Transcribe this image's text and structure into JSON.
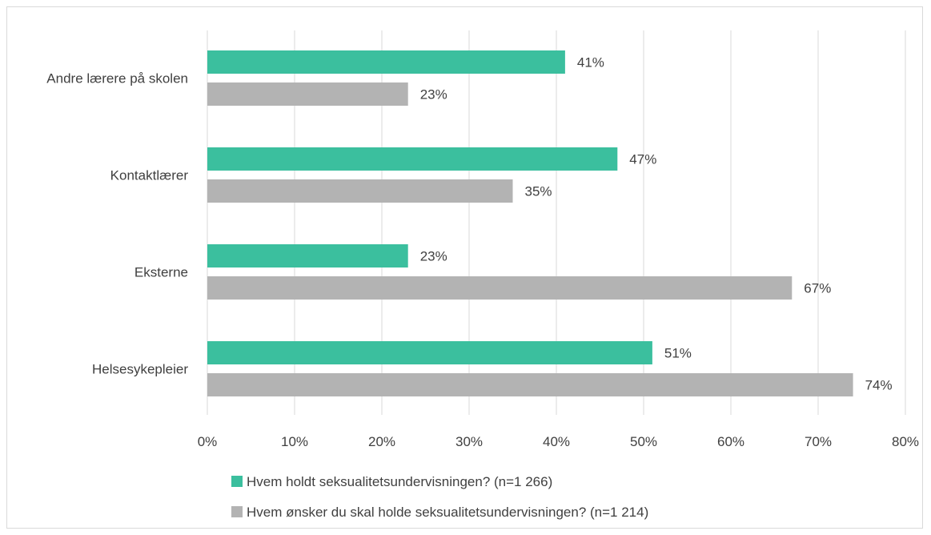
{
  "chart_data": {
    "type": "bar",
    "orientation": "horizontal",
    "categories": [
      "Andre lærere på skolen",
      "Kontaktlærer",
      "Eksterne",
      "Helsesykepleier"
    ],
    "series": [
      {
        "name": "Hvem holdt seksualitetsundervisningen? (n=1 266)",
        "values": [
          41,
          47,
          23,
          51
        ],
        "color": "#3bbf9e"
      },
      {
        "name": "Hvem ønsker du skal holde seksualitetsundervisningen? (n=1 214)",
        "values": [
          23,
          35,
          67,
          74
        ],
        "color": "#b3b3b3"
      }
    ],
    "xlim": [
      0,
      80
    ],
    "xticks": [
      0,
      10,
      20,
      30,
      40,
      50,
      60,
      70,
      80
    ],
    "tick_suffix": "%",
    "value_suffix": "%",
    "grid": "vertical",
    "legend_position": "bottom",
    "gridline_color": "#d9d9d9"
  }
}
